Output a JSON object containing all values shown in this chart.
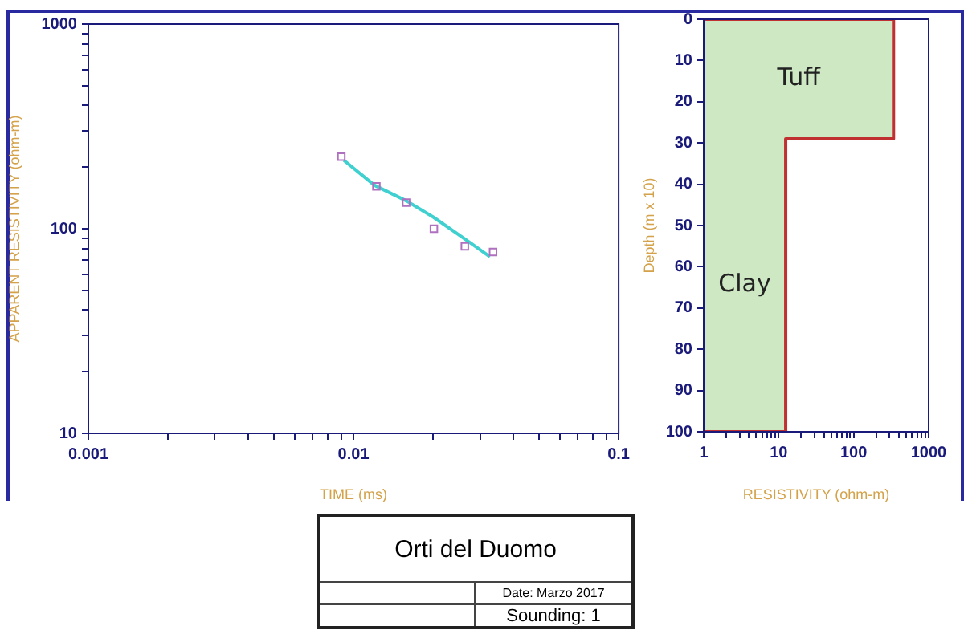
{
  "chart_data": [
    {
      "type": "scatter",
      "xlabel": "TIME (ms)",
      "ylabel": "APPARENT RESISTIVITY (ohm-m)",
      "log": "xy",
      "legend": false,
      "xlim": [
        0.001,
        0.1
      ],
      "xticks": [
        0.001,
        {
          "value": 0.002,
          "label": null
        },
        {
          "value": 0.003,
          "label": null
        },
        {
          "value": 0.004,
          "label": null
        },
        {
          "value": 0.005,
          "label": null
        },
        {
          "value": 0.006,
          "label": null
        },
        {
          "value": 0.007,
          "label": null
        },
        {
          "value": 0.008,
          "label": null
        },
        {
          "value": 0.009,
          "label": null
        },
        0.01,
        {
          "value": 0.02,
          "label": null
        },
        {
          "value": 0.03,
          "label": null
        },
        {
          "value": 0.04,
          "label": null
        },
        {
          "value": 0.05,
          "label": null
        },
        {
          "value": 0.06,
          "label": null
        },
        {
          "value": 0.07,
          "label": null
        },
        {
          "value": 0.08,
          "label": null
        },
        {
          "value": 0.09,
          "label": null
        },
        0.1
      ],
      "ylim": [
        10,
        1000
      ],
      "yticks": [
        10,
        {
          "value": 20,
          "label": null
        },
        {
          "value": 30,
          "label": null
        },
        {
          "value": 40,
          "label": null
        },
        {
          "value": 50,
          "label": null
        },
        {
          "value": 60,
          "label": null
        },
        {
          "value": 70,
          "label": null
        },
        {
          "value": 80,
          "label": null
        },
        {
          "value": 90,
          "label": null
        },
        100,
        {
          "value": 200,
          "label": null
        },
        {
          "value": 300,
          "label": null
        },
        {
          "value": 400,
          "label": null
        },
        {
          "value": 500,
          "label": null
        },
        {
          "value": 600,
          "label": null
        },
        {
          "value": 700,
          "label": null
        },
        {
          "value": 800,
          "label": null
        },
        {
          "value": 900,
          "label": null
        },
        1000
      ],
      "series": [
        {
          "type": "scatter",
          "color": "#b070c0",
          "marker": "square",
          "x": [
            0.009,
            0.0122,
            0.0158,
            0.0201,
            0.0263,
            0.0336
          ],
          "values": [
            225,
            161,
            134,
            100,
            82,
            77
          ]
        },
        {
          "type": "line",
          "color": "#40d0d0",
          "marker": "none",
          "x": [
            0.0092,
            0.012,
            0.0158,
            0.02,
            0.026,
            0.0327
          ],
          "values": [
            216,
            163,
            137,
            114,
            90,
            73
          ]
        }
      ]
    },
    {
      "type": "line",
      "xlabel": "RESISTIVITY (ohm-m)",
      "ylabel": "Depth (m x 10)",
      "log": "x",
      "legend": false,
      "marker": "none",
      "xlim": [
        1,
        1000
      ],
      "xticks": [
        1,
        {
          "value": 2,
          "label": null
        },
        {
          "value": 3,
          "label": null
        },
        {
          "value": 4,
          "label": null
        },
        {
          "value": 5,
          "label": null
        },
        {
          "value": 6,
          "label": null
        },
        {
          "value": 7,
          "label": null
        },
        {
          "value": 8,
          "label": null
        },
        {
          "value": 9,
          "label": null
        },
        10,
        {
          "value": 20,
          "label": null
        },
        {
          "value": 30,
          "label": null
        },
        {
          "value": 40,
          "label": null
        },
        {
          "value": 50,
          "label": null
        },
        {
          "value": 60,
          "label": null
        },
        {
          "value": 70,
          "label": null
        },
        {
          "value": 80,
          "label": null
        },
        {
          "value": 90,
          "label": null
        },
        100,
        {
          "value": 200,
          "label": null
        },
        {
          "value": 300,
          "label": null
        },
        {
          "value": 400,
          "label": null
        },
        {
          "value": 500,
          "label": null
        },
        {
          "value": 600,
          "label": null
        },
        {
          "value": 700,
          "label": null
        },
        {
          "value": 800,
          "label": null
        },
        {
          "value": 900,
          "label": null
        },
        1000
      ],
      "ylim": [
        100,
        0
      ],
      "yticks": [
        0,
        10,
        20,
        30,
        40,
        50,
        60,
        70,
        80,
        90,
        100
      ],
      "series": [
        {
          "type": "area",
          "color": "#c03030",
          "x": [
            1,
            340,
            340,
            12.4,
            12.4,
            1
          ],
          "values": [
            0,
            0,
            29,
            29,
            100,
            100
          ]
        }
      ],
      "annotations": [
        "Tuff",
        "Clay"
      ]
    },
    {
      "type": "other",
      "annotations": [
        "Orti del Duomo",
        "Date: Marzo 2017",
        "Sounding: 1"
      ]
    }
  ]
}
